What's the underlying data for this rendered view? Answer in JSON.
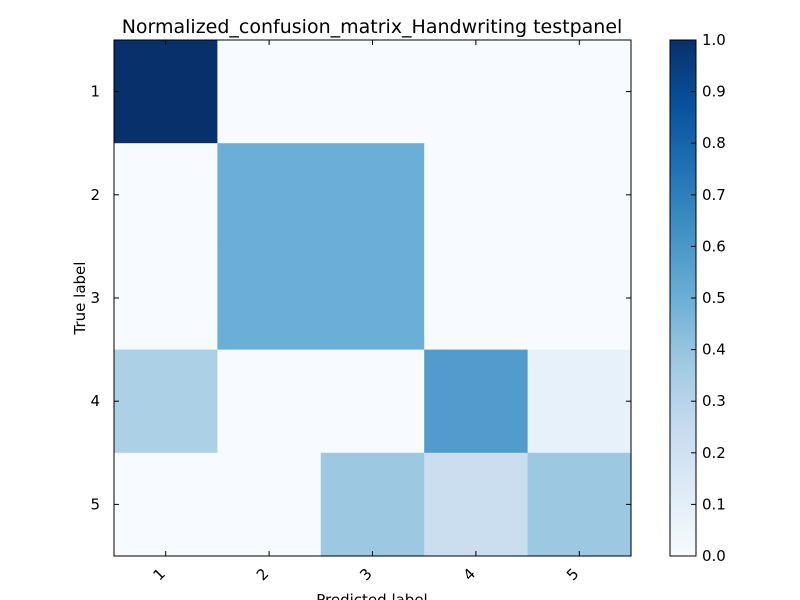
{
  "chart_data": {
    "type": "heatmap",
    "title": "Normalized_confusion_matrix_Handwriting testpanel",
    "xlabel": "Predicted label",
    "ylabel": "True label",
    "x_categories": [
      "1",
      "2",
      "3",
      "4",
      "5"
    ],
    "y_categories": [
      "1",
      "2",
      "3",
      "4",
      "5"
    ],
    "values": [
      [
        1.0,
        0.0,
        0.0,
        0.0,
        0.0
      ],
      [
        0.0,
        0.5,
        0.5,
        0.0,
        0.0
      ],
      [
        0.0,
        0.5,
        0.5,
        0.0,
        0.0
      ],
      [
        0.33,
        0.0,
        0.0,
        0.58,
        0.08
      ],
      [
        0.0,
        0.0,
        0.38,
        0.23,
        0.38
      ]
    ],
    "colormap": "Blues",
    "colorbar": {
      "range": [
        0.0,
        1.0
      ],
      "ticks": [
        "0.0",
        "0.1",
        "0.2",
        "0.3",
        "0.4",
        "0.5",
        "0.6",
        "0.7",
        "0.8",
        "0.9",
        "1.0"
      ]
    },
    "grid": false,
    "legend": "colorbar-right"
  }
}
